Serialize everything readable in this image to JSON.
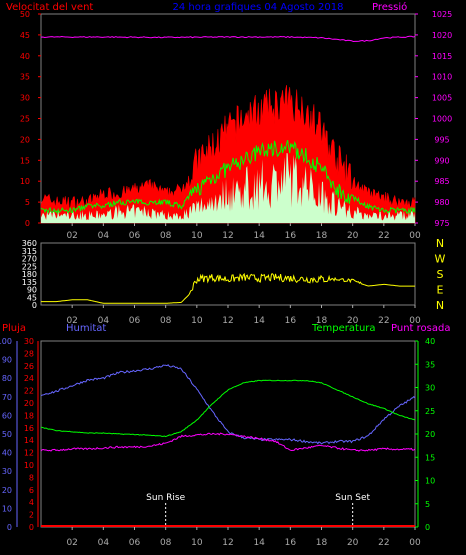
{
  "panel1": {
    "left_title": "Velocitat del vent",
    "center_title": "24 hora grafiques  04 Agosto 2018",
    "right_title": "Pressió",
    "left_ticks": [
      "0",
      "5",
      "10",
      "15",
      "20",
      "25",
      "30",
      "35",
      "40",
      "45",
      "50"
    ],
    "right_ticks": [
      "975",
      "980",
      "985",
      "990",
      "995",
      "1000",
      "1005",
      "1010",
      "1015",
      "1020",
      "1025"
    ],
    "colors": {
      "gust": "#ff0000",
      "avg": "#00ff00",
      "low": "#ccffcc",
      "pressure": "#ff00ff",
      "left_axis": "#ff0000",
      "right_axis": "#ff00ff",
      "title": "#0000ff"
    }
  },
  "panel2": {
    "ticks": [
      "0",
      "45",
      "90",
      "135",
      "180",
      "225",
      "270",
      "315",
      "360"
    ],
    "compass": [
      "N",
      "W",
      "S",
      "E",
      "N"
    ],
    "colors": {
      "line": "#ffff00",
      "compass": "#ffff00"
    }
  },
  "panel3": {
    "label_rain": "Pluja",
    "label_humidity": "Humitat",
    "label_temp": "Temperatura",
    "label_dew": "Punt rosada",
    "rain_ticks": [
      "0",
      "10",
      "20",
      "30",
      "40",
      "50",
      "60",
      "70",
      "80",
      "90",
      "100"
    ],
    "temp_left_ticks": [
      "0",
      "2",
      "4",
      "6",
      "8",
      "10",
      "12",
      "14",
      "16",
      "18",
      "20",
      "22",
      "24",
      "26",
      "28",
      "30"
    ],
    "temp_right_ticks": [
      "0",
      "5",
      "10",
      "15",
      "20",
      "25",
      "30",
      "35",
      "40"
    ],
    "sun_rise": "Sun Rise",
    "sun_set": "Sun Set",
    "colors": {
      "rain": "#ff0000",
      "humidity": "#6666ff",
      "temp": "#00ff00",
      "dew": "#ff00ff",
      "axis_left": "#ff0000",
      "axis_hum": "#6666ff",
      "axis_right": "#00ff00"
    }
  },
  "x_ticks": [
    "02",
    "04",
    "06",
    "08",
    "10",
    "12",
    "14",
    "16",
    "18",
    "20",
    "22",
    "00"
  ],
  "chart_data": [
    {
      "type": "line",
      "title": "24 hora grafiques  04 Agosto 2018",
      "ylabel": "Velocitat del vent",
      "y2label": "Pressió",
      "x_range_hours": [
        0,
        24
      ],
      "ylim": [
        0,
        50
      ],
      "y2lim": [
        975,
        1025
      ],
      "series": [
        {
          "name": "gust",
          "x": [
            0,
            1,
            2,
            3,
            4,
            5,
            6,
            7,
            8,
            9,
            10,
            11,
            12,
            13,
            14,
            15,
            16,
            17,
            18,
            19,
            20,
            21,
            22,
            23,
            24
          ],
          "values": [
            6,
            5,
            5,
            5,
            7,
            7,
            8,
            9,
            7,
            8,
            14,
            18,
            22,
            25,
            27,
            28,
            29,
            27,
            22,
            15,
            10,
            7,
            6,
            5,
            5
          ]
        },
        {
          "name": "avg",
          "x": [
            0,
            1,
            2,
            3,
            4,
            5,
            6,
            7,
            8,
            9,
            10,
            11,
            12,
            13,
            14,
            15,
            16,
            17,
            18,
            19,
            20,
            21,
            22,
            23,
            24
          ],
          "values": [
            3,
            3,
            3,
            4,
            4,
            5,
            5,
            5,
            5,
            4,
            8,
            11,
            13,
            15,
            17,
            18,
            18,
            16,
            13,
            8,
            6,
            4,
            3,
            3,
            3
          ]
        },
        {
          "name": "low",
          "x": [
            0,
            1,
            2,
            3,
            4,
            5,
            6,
            7,
            8,
            9,
            10,
            11,
            12,
            13,
            14,
            15,
            16,
            17,
            18,
            19,
            20,
            21,
            22,
            23,
            24
          ],
          "values": [
            2,
            2,
            2,
            2,
            2,
            3,
            3,
            3,
            2,
            2,
            4,
            6,
            8,
            9,
            10,
            11,
            12,
            10,
            8,
            5,
            3,
            2,
            2,
            2,
            2
          ]
        },
        {
          "name": "pressure",
          "x": [
            0,
            4,
            8,
            12,
            16,
            18,
            20,
            21,
            22,
            24
          ],
          "values": [
            1019.5,
            1019.5,
            1019.4,
            1019.5,
            1019.5,
            1019.3,
            1018.5,
            1018.6,
            1019.3,
            1019.6
          ]
        }
      ]
    },
    {
      "type": "line",
      "x_range_hours": [
        0,
        24
      ],
      "ylim": [
        0,
        360
      ],
      "series": [
        {
          "name": "wind direction",
          "x": [
            0,
            1,
            2,
            3,
            4,
            5,
            6,
            7,
            8,
            9,
            9.5,
            10,
            11,
            12,
            13,
            14,
            15,
            16,
            17,
            18,
            19,
            20,
            21,
            22,
            23,
            24
          ],
          "values": [
            20,
            20,
            30,
            30,
            10,
            10,
            10,
            10,
            10,
            15,
            60,
            150,
            160,
            150,
            160,
            155,
            160,
            155,
            150,
            150,
            150,
            140,
            110,
            120,
            110,
            110
          ]
        }
      ]
    },
    {
      "type": "line",
      "x_range_hours": [
        0,
        24
      ],
      "y_left1": "Pluja",
      "y_left2": "Humitat",
      "y_right": "Temperatura",
      "ylim_rain": [
        0,
        100
      ],
      "ylim_temp": [
        0,
        40
      ],
      "series": [
        {
          "name": "Humitat",
          "x": [
            0,
            1,
            2,
            3,
            4,
            5,
            6,
            7,
            8,
            9,
            10,
            11,
            12,
            13,
            14,
            15,
            16,
            17,
            18,
            19,
            20,
            21,
            22,
            23,
            24
          ],
          "values": [
            71,
            73,
            76,
            79,
            80,
            83,
            84,
            85,
            87,
            85,
            74,
            62,
            51,
            48,
            47,
            47,
            47,
            46,
            45,
            46,
            46,
            49,
            58,
            65,
            70
          ]
        },
        {
          "name": "Temperatura",
          "x": [
            0,
            1,
            2,
            3,
            4,
            5,
            6,
            7,
            8,
            9,
            10,
            11,
            12,
            13,
            14,
            15,
            16,
            17,
            18,
            19,
            20,
            21,
            22,
            23,
            24
          ],
          "values": [
            21.5,
            20.7,
            20.5,
            20.2,
            20.2,
            20.0,
            19.9,
            19.7,
            19.5,
            20.5,
            23.0,
            26.5,
            29.5,
            31.0,
            31.5,
            31.5,
            31.5,
            31.5,
            31.0,
            29.5,
            28.0,
            26.5,
            25.5,
            24.0,
            23.0
          ]
        },
        {
          "name": "Punt rosada",
          "x": [
            0,
            1,
            2,
            3,
            4,
            5,
            6,
            7,
            8,
            9,
            10,
            11,
            12,
            13,
            14,
            15,
            16,
            17,
            18,
            19,
            20,
            21,
            22,
            23,
            24
          ],
          "values": [
            16.5,
            16.5,
            16.8,
            16.8,
            17.0,
            17.2,
            17.2,
            17.4,
            18.0,
            19.5,
            19.8,
            20.0,
            20.0,
            19.5,
            19.0,
            18.5,
            16.5,
            17.0,
            17.5,
            17.0,
            16.5,
            16.5,
            16.8,
            16.7,
            16.7
          ]
        },
        {
          "name": "Pluja",
          "x": [
            0,
            24
          ],
          "values": [
            0,
            0
          ]
        }
      ]
    }
  ]
}
